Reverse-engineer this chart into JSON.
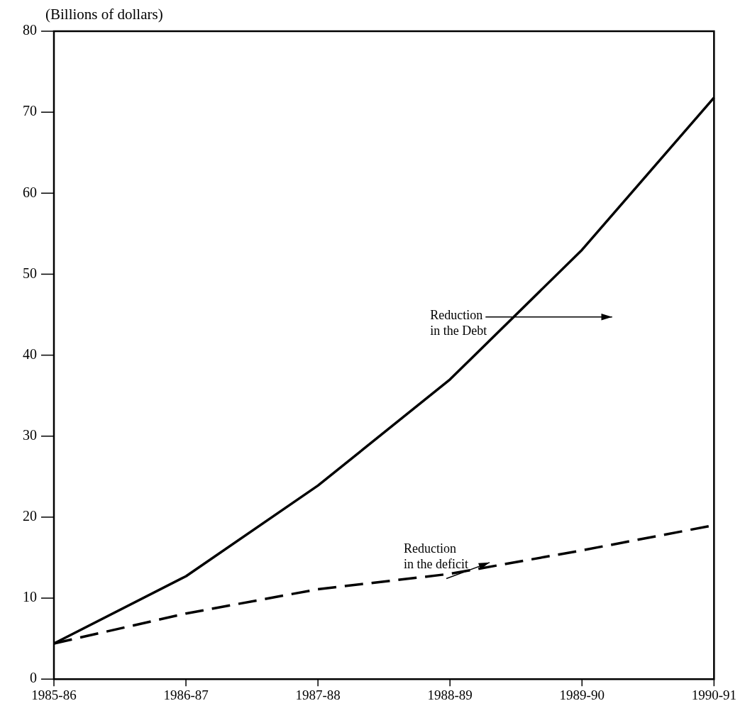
{
  "chart_data": {
    "type": "line",
    "ylabel": "(Billions of dollars)",
    "categories": [
      "1985-86",
      "1986-87",
      "1987-88",
      "1988-89",
      "1989-90",
      "1990-91"
    ],
    "series": [
      {
        "name": "Reduction in the Debt",
        "color": "#000000",
        "line_style": "solid",
        "values": [
          4.4,
          12.7,
          23.9,
          37,
          53,
          71.8
        ]
      },
      {
        "name": "Reduction in the deficit",
        "color": "#000000",
        "line_style": "dashed",
        "values": [
          4.4,
          8.1,
          11.1,
          13,
          15.9,
          19
        ]
      }
    ],
    "ylim": [
      0,
      80
    ],
    "yticks": [
      0,
      10,
      20,
      30,
      40,
      50,
      60,
      70,
      80
    ],
    "grid": false,
    "legend": false,
    "marker": "none"
  }
}
